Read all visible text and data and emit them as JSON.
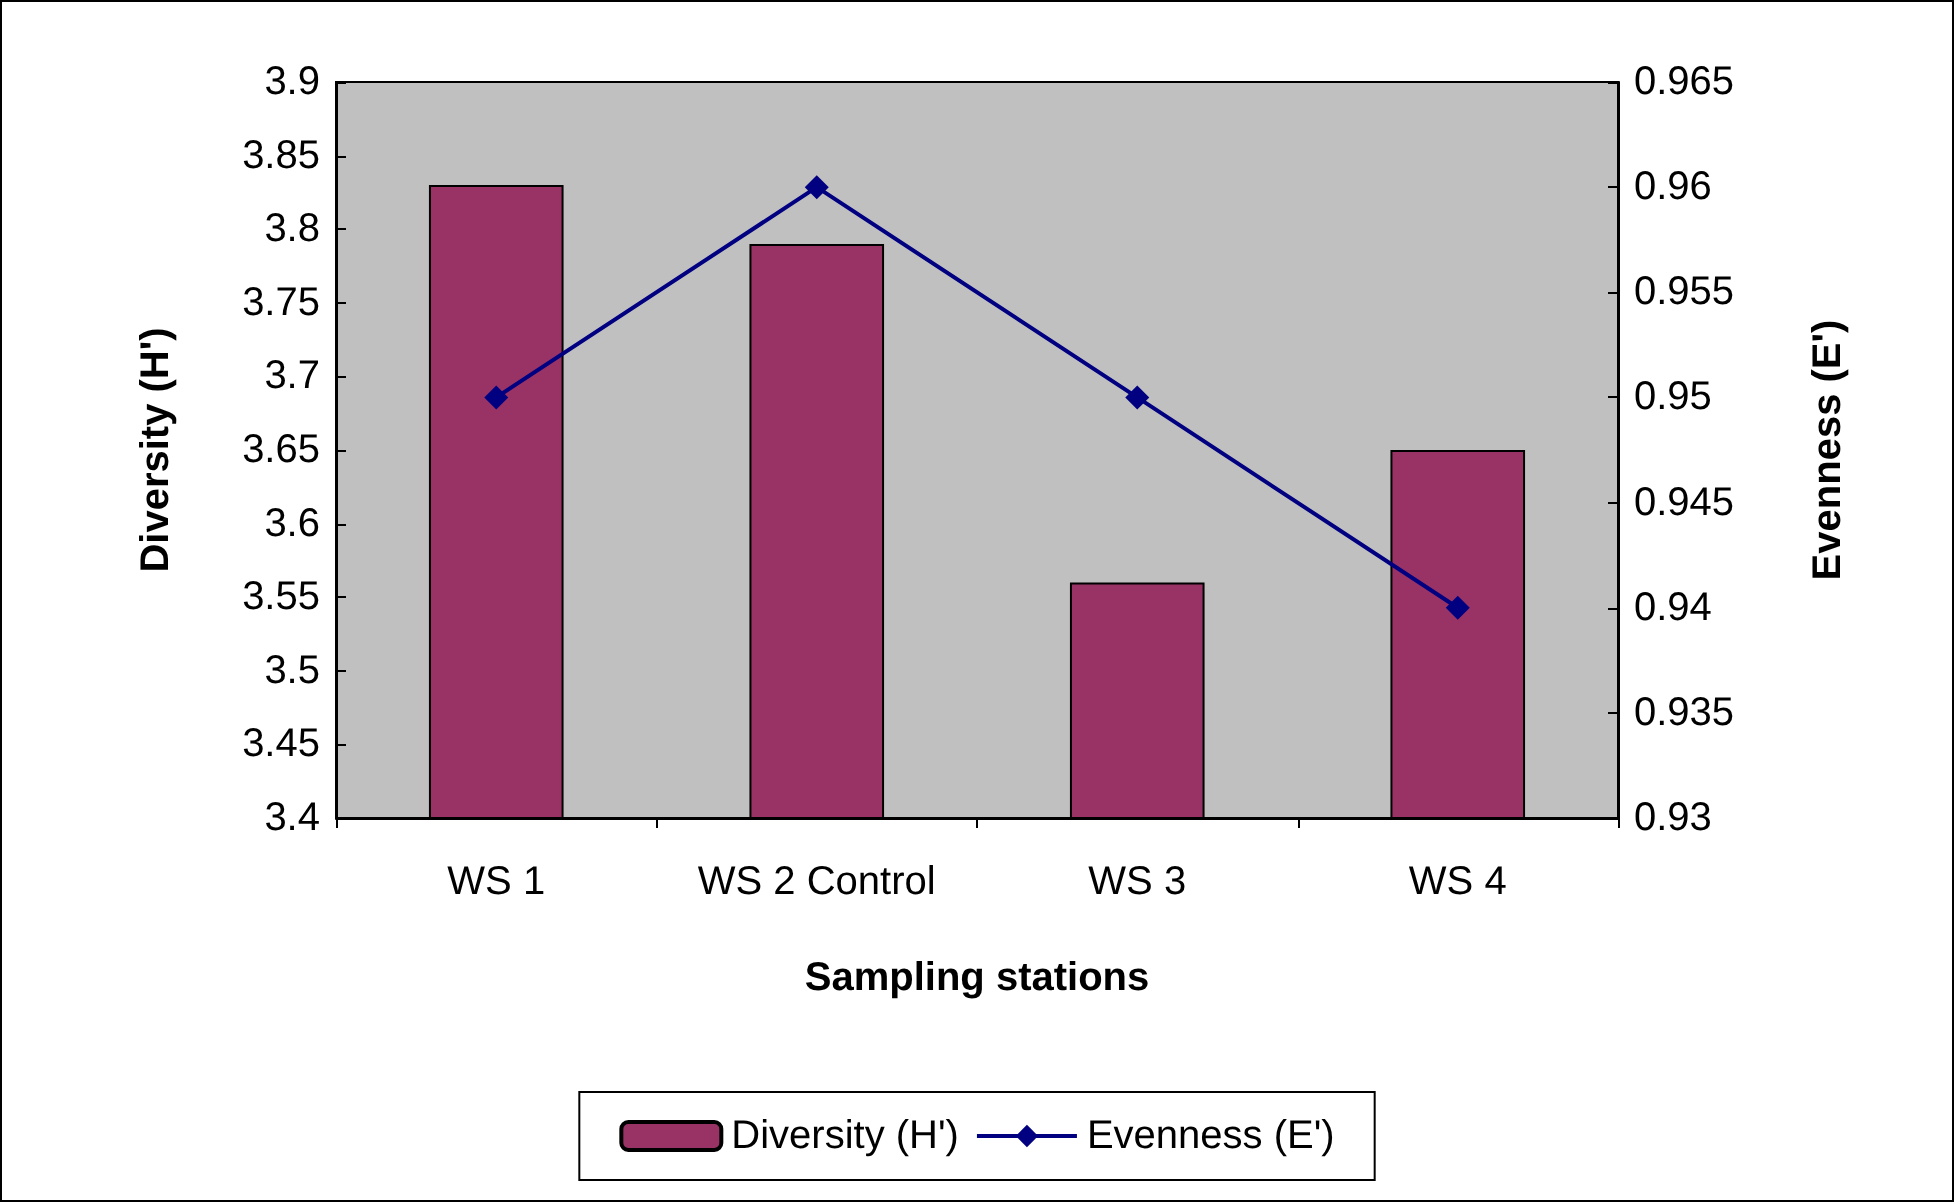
{
  "chart_data": {
    "type": "bar",
    "xlabel": "Sampling stations",
    "ylabel": "Diversity (H')",
    "y2label": "Evenness (E')",
    "categories": [
      "WS 1",
      "WS 2 Control",
      "WS 3",
      "WS 4"
    ],
    "series": [
      {
        "name": "Diversity (H')",
        "color": "#993366",
        "values": [
          3.83,
          3.79,
          3.56,
          3.65
        ]
      },
      {
        "name": "Evenness (E')",
        "type": "line",
        "axis": "y2",
        "color": "#000080",
        "marker": "diamond",
        "values": [
          0.95,
          0.96,
          0.95,
          0.94
        ]
      }
    ],
    "ylim": [
      3.4,
      3.9
    ],
    "yticks": [
      3.4,
      3.45,
      3.5,
      3.55,
      3.6,
      3.65,
      3.7,
      3.75,
      3.8,
      3.85,
      3.9
    ],
    "y2lim": [
      0.93,
      0.965
    ],
    "y2ticks": [
      0.93,
      0.935,
      0.94,
      0.945,
      0.95,
      0.955,
      0.96,
      0.965
    ],
    "grid": false,
    "legend": "bottom"
  }
}
